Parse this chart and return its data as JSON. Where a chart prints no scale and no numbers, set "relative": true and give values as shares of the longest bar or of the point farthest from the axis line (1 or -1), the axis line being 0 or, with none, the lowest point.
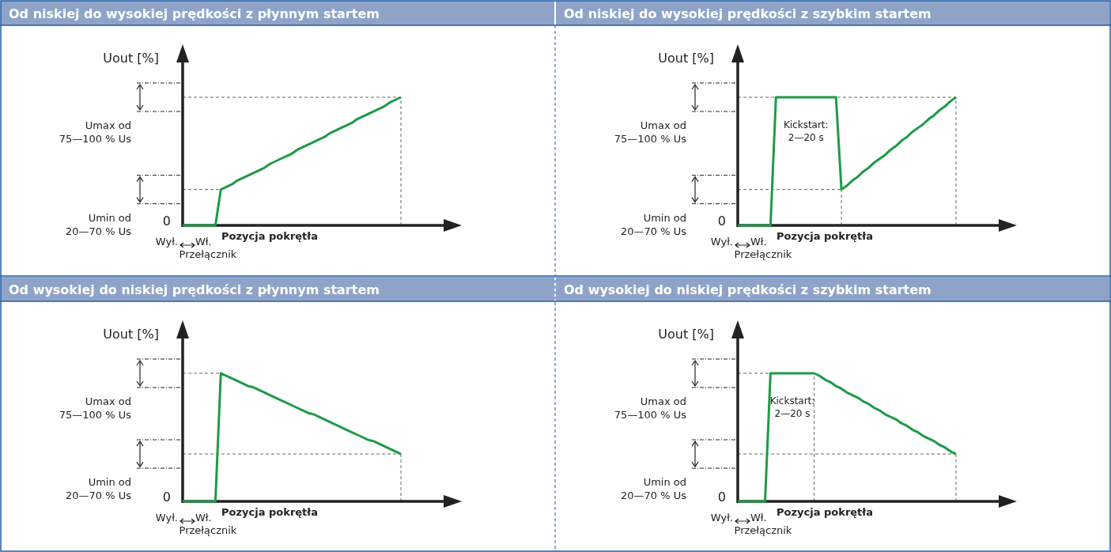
{
  "chart_data": [
    {
      "type": "line",
      "relative": true,
      "title": "Od niskiej do wysokiej prędkości z płynnym startem",
      "ylabel": "Uout [%]",
      "xlabel": "Pozycja pokrętła",
      "categories": [
        null,
        null,
        null,
        null,
        null,
        null,
        null,
        null,
        null,
        null,
        null,
        null,
        null,
        null,
        null,
        null,
        null,
        null,
        null,
        null,
        null,
        null,
        null,
        null,
        null,
        null,
        null,
        null,
        null,
        null,
        null,
        null,
        null,
        null,
        null,
        null,
        null,
        null,
        null,
        null,
        null
      ],
      "series": [
        {
          "color": "#1e9a46",
          "values": [
            0,
            0,
            0,
            0,
            0,
            0,
            0,
            0.28,
            0.3,
            0.32,
            0.35,
            0.37,
            0.39,
            0.41,
            0.43,
            0.45,
            0.48,
            0.5,
            0.52,
            0.54,
            0.56,
            0.59,
            0.61,
            0.63,
            0.65,
            0.67,
            0.69,
            0.72,
            0.74,
            0.76,
            0.78,
            0.8,
            0.83,
            0.85,
            0.87,
            0.89,
            0.91,
            0.93,
            0.96,
            0.98,
            1
          ]
        }
      ],
      "ref_lines": [
        {
          "axis": "y",
          "value": 1,
          "color": "#666666",
          "line_style": "dashed"
        },
        {
          "axis": "y",
          "value": 0.28,
          "color": "#666666",
          "line_style": "dashed"
        }
      ],
      "annotations": [
        "Umax od\n75—100 % Us",
        "Umin od\n20—70 % Us",
        "0",
        "Wył.",
        "Wł.",
        "Przełącznik"
      ]
    },
    {
      "type": "line",
      "relative": true,
      "title": "Od niskiej do wysokiej prędkości z szybkim startem",
      "ylabel": "Uout [%]",
      "xlabel": "Pozycja pokrętła",
      "categories": [
        null,
        null,
        null,
        null,
        null,
        null,
        null,
        null,
        null,
        null,
        null,
        null,
        null,
        null,
        null,
        null,
        null,
        null,
        null,
        null,
        null,
        null,
        null,
        null,
        null,
        null,
        null,
        null,
        null,
        null,
        null,
        null,
        null,
        null,
        null,
        null,
        null,
        null,
        null,
        null,
        null
      ],
      "series": [
        {
          "color": "#1e9a46",
          "values": [
            0,
            0,
            0,
            0,
            0,
            0,
            0,
            1,
            1,
            1,
            1,
            1,
            1,
            1,
            1,
            1,
            1,
            1,
            1,
            0.28,
            0.31,
            0.35,
            0.38,
            0.42,
            0.45,
            0.49,
            0.52,
            0.55,
            0.59,
            0.62,
            0.66,
            0.69,
            0.73,
            0.76,
            0.79,
            0.83,
            0.86,
            0.9,
            0.93,
            0.97,
            1
          ]
        }
      ],
      "ref_lines": [
        {
          "axis": "y",
          "value": 1,
          "color": "#666666",
          "line_style": "dashed"
        },
        {
          "axis": "y",
          "value": 0.28,
          "color": "#666666",
          "line_style": "dashed"
        }
      ],
      "annotations": [
        "Umax od\n75—100 % Us",
        "Umin od\n20—70 % Us",
        "0",
        "Wył.",
        "Wł.",
        "Przełącznik",
        "Kickstart:\n2—20 s"
      ]
    },
    {
      "type": "line",
      "relative": true,
      "title": "Od wysokiej do niskiej prędkości z płynnym startem",
      "ylabel": "Uout [%]",
      "xlabel": "Pozycja pokrętła",
      "categories": [
        null,
        null,
        null,
        null,
        null,
        null,
        null,
        null,
        null,
        null,
        null,
        null,
        null,
        null,
        null,
        null,
        null,
        null,
        null,
        null,
        null,
        null,
        null,
        null,
        null,
        null,
        null,
        null,
        null,
        null,
        null,
        null,
        null,
        null,
        null,
        null,
        null,
        null,
        null,
        null,
        null
      ],
      "series": [
        {
          "color": "#1e9a46",
          "values": [
            0,
            0,
            0,
            0,
            0,
            0,
            0,
            1,
            0.98,
            0.96,
            0.94,
            0.92,
            0.9,
            0.89,
            0.87,
            0.85,
            0.83,
            0.81,
            0.79,
            0.77,
            0.75,
            0.73,
            0.71,
            0.69,
            0.68,
            0.66,
            0.64,
            0.62,
            0.6,
            0.58,
            0.56,
            0.54,
            0.52,
            0.5,
            0.48,
            0.47,
            0.45,
            0.43,
            0.41,
            0.39,
            0.37
          ]
        }
      ],
      "ref_lines": [
        {
          "axis": "y",
          "value": 1,
          "color": "#666666",
          "line_style": "dashed"
        },
        {
          "axis": "y",
          "value": 0.37,
          "color": "#666666",
          "line_style": "dashed"
        }
      ],
      "annotations": [
        "Umax od\n75—100 % Us",
        "Umin od\n20—70 % Us",
        "0",
        "Wył.",
        "Wł.",
        "Przełącznik"
      ]
    },
    {
      "type": "line",
      "relative": true,
      "title": "Od wysokiej do niskiej prędkości z szybkim startem",
      "ylabel": "Uout [%]",
      "xlabel": "Pozycja pokrętła",
      "categories": [
        null,
        null,
        null,
        null,
        null,
        null,
        null,
        null,
        null,
        null,
        null,
        null,
        null,
        null,
        null,
        null,
        null,
        null,
        null,
        null,
        null,
        null,
        null,
        null,
        null,
        null,
        null,
        null,
        null,
        null,
        null,
        null,
        null,
        null,
        null,
        null,
        null,
        null,
        null,
        null,
        null
      ],
      "series": [
        {
          "color": "#1e9a46",
          "values": [
            0,
            0,
            0,
            0,
            0,
            0,
            1,
            1,
            1,
            1,
            1,
            1,
            1,
            1,
            1,
            0.98,
            0.95,
            0.93,
            0.9,
            0.88,
            0.85,
            0.83,
            0.81,
            0.78,
            0.76,
            0.73,
            0.71,
            0.68,
            0.66,
            0.64,
            0.61,
            0.59,
            0.56,
            0.54,
            0.51,
            0.49,
            0.47,
            0.44,
            0.42,
            0.39,
            0.37
          ]
        }
      ],
      "ref_lines": [
        {
          "axis": "y",
          "value": 1,
          "color": "#666666",
          "line_style": "dashed"
        },
        {
          "axis": "y",
          "value": 0.37,
          "color": "#666666",
          "line_style": "dashed"
        }
      ],
      "annotations": [
        "Umax od\n75—100 % Us",
        "Umin od\n20—70 % Us",
        "0",
        "Wył.",
        "Wł.",
        "Przełącznik",
        "Kickstart:\n2—20 s"
      ]
    }
  ]
}
